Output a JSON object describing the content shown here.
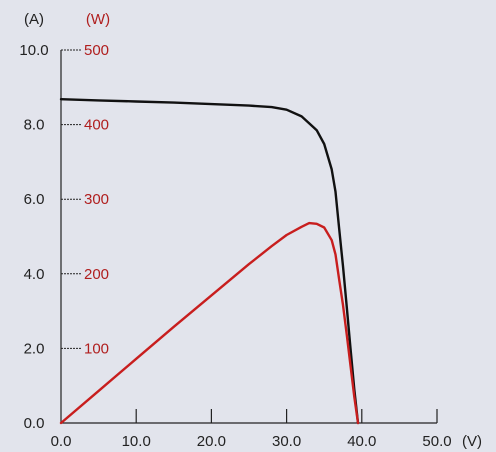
{
  "chart_data": {
    "type": "line",
    "title": "",
    "x_axis": {
      "unit_label": "(V)",
      "range": [
        0,
        50
      ],
      "ticks": [
        "0.0",
        "10.0",
        "20.0",
        "30.0",
        "40.0",
        "50.0"
      ]
    },
    "y_axis_current": {
      "unit_label": "(A)",
      "range": [
        0,
        10
      ],
      "ticks": [
        "0.0",
        "2.0",
        "4.0",
        "6.0",
        "8.0",
        "10.0"
      ],
      "color": "#222222"
    },
    "y_axis_power": {
      "unit_label": "(W)",
      "range": [
        0,
        500
      ],
      "ticks": [
        "100",
        "200",
        "300",
        "400",
        "500"
      ],
      "color": "#b01e1e"
    },
    "grid": false,
    "series": [
      {
        "axis": "current",
        "color": "#111111",
        "x": [
          0,
          5,
          10,
          15,
          20,
          25,
          28,
          30,
          32,
          34,
          35,
          36,
          36.5,
          37,
          37.5,
          38,
          38.5,
          39,
          39.5
        ],
        "y": [
          8.68,
          8.65,
          8.62,
          8.59,
          8.55,
          8.51,
          8.47,
          8.4,
          8.22,
          7.85,
          7.48,
          6.8,
          6.2,
          5.2,
          4.2,
          3.1,
          2.0,
          0.9,
          0.0
        ]
      },
      {
        "axis": "power",
        "color": "#c81e1e",
        "x": [
          0,
          5,
          10,
          15,
          20,
          25,
          28,
          30,
          32,
          33,
          34,
          35,
          36,
          36.5,
          37,
          37.5,
          38,
          38.5,
          39,
          39.5
        ],
        "y": [
          0,
          43,
          86,
          129,
          171,
          213,
          237,
          252,
          263,
          268,
          267,
          262,
          245,
          226,
          192,
          158,
          118,
          77,
          35,
          0
        ]
      }
    ]
  }
}
